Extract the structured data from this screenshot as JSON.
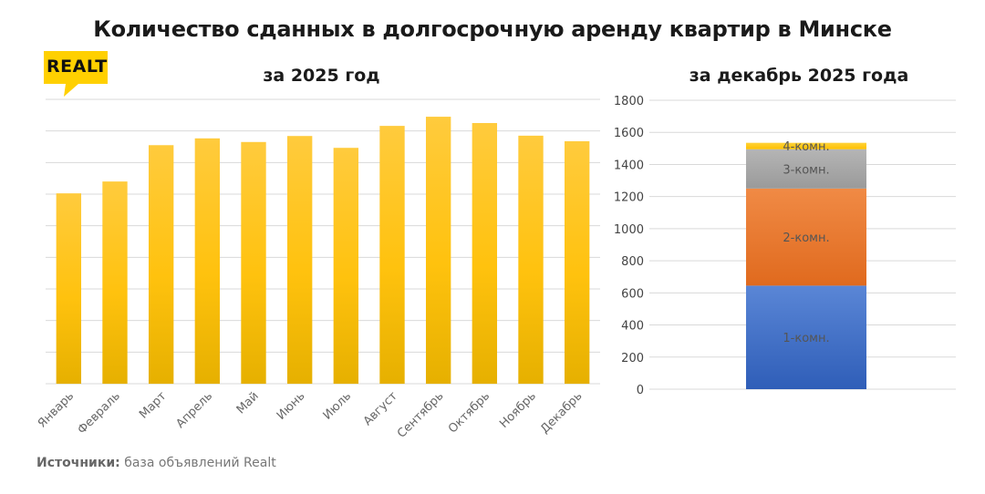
{
  "header": {
    "title": "Количество сданных в долгосрочную аренду квартир в Минске",
    "subtitle_left": "за 2025 год",
    "subtitle_right": "за декабрь 2025 года"
  },
  "logo": {
    "text": "REALT",
    "color": "#FFD000"
  },
  "footer": {
    "source_label": "Источники:",
    "source_text": " база объявлений Realt"
  },
  "chart_data": [
    {
      "type": "bar",
      "title": "за 2025 год",
      "categories": [
        "Январь",
        "Февраль",
        "Март",
        "Апрель",
        "Май",
        "Июнь",
        "Июль",
        "Август",
        "Сентябрь",
        "Октябрь",
        "Ноябрь",
        "Декабрь"
      ],
      "values": [
        1205,
        1280,
        1510,
        1553,
        1530,
        1568,
        1493,
        1632,
        1690,
        1650,
        1570,
        1535
      ],
      "ylim": [
        0,
        1800
      ],
      "grid": true,
      "color": "#FFC20E"
    },
    {
      "type": "bar",
      "stacked": true,
      "title": "за декабрь 2025 года",
      "categories": [
        ""
      ],
      "yticks": [
        "0",
        "200",
        "400",
        "600",
        "800",
        "1000",
        "1200",
        "1400",
        "1600",
        "1800"
      ],
      "ylim": [
        0,
        1800
      ],
      "grid": true,
      "series": [
        {
          "name": "1-комн.",
          "values": [
            645
          ],
          "color": "#4472C4"
        },
        {
          "name": "2-комн.",
          "values": [
            605
          ],
          "color": "#ED7D31"
        },
        {
          "name": "3-комн.",
          "values": [
            245
          ],
          "color": "#A5A5A5"
        },
        {
          "name": "4-комн.",
          "values": [
            40
          ],
          "color": "#FFC000"
        }
      ]
    }
  ]
}
